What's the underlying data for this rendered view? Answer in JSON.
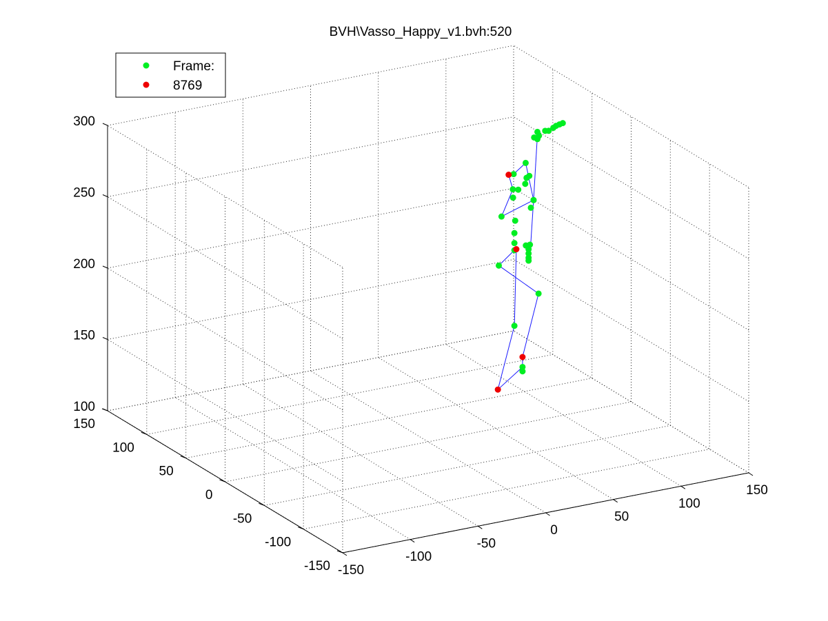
{
  "colors": {
    "background": "#ffffff",
    "joint_normal": "#00ee22",
    "joint_end": "#ee0000",
    "bone": "#1a1aff"
  },
  "chart_data": {
    "type": "scatter",
    "subtype": "3d-skeleton",
    "title": "BVH\\Vasso_Happy_v1.bvh:520",
    "xlabel": "",
    "ylabel": "",
    "zlabel": "",
    "xlim": [
      -150,
      150
    ],
    "ylim": [
      -150,
      150
    ],
    "zlim": [
      100,
      300
    ],
    "x_ticks": [
      "-150",
      "-100",
      "-50",
      "0",
      "50",
      "100",
      "150"
    ],
    "y_ticks": [
      "-150",
      "-100",
      "-50",
      "0",
      "50",
      "100",
      "150"
    ],
    "z_ticks": [
      "100",
      "150",
      "200",
      "250",
      "300"
    ],
    "grid": true,
    "legend_position": "top-left",
    "legend": [
      {
        "label": "Frame:",
        "color": "#00ee22"
      },
      {
        "label": "8769",
        "color": "#ee0000"
      }
    ],
    "series": [
      {
        "color": "#00ee22",
        "points": [
          [
            95,
            35,
            257
          ],
          [
            93,
            35,
            256
          ],
          [
            92,
            35,
            252
          ],
          [
            88,
            37,
            248
          ],
          [
            84,
            37,
            249
          ],
          [
            101,
            50,
            260
          ],
          [
            84,
            36,
            260
          ],
          [
            120,
            72,
            267
          ],
          [
            123,
            71,
            268
          ],
          [
            127,
            70,
            271
          ],
          [
            129,
            69,
            271
          ],
          [
            133,
            70,
            272
          ],
          [
            135,
            70,
            273
          ],
          [
            137,
            69,
            274
          ],
          [
            140,
            70,
            274
          ],
          [
            123,
            73,
            270
          ],
          [
            123,
            73,
            265
          ],
          [
            83,
            35,
            244
          ],
          [
            71,
            29,
            235
          ],
          [
            108,
            52,
            232
          ],
          [
            108,
            52,
            232
          ],
          [
            84,
            34,
            228
          ],
          [
            106,
            52,
            227
          ],
          [
            84,
            35,
            219
          ],
          [
            84,
            35,
            212
          ],
          [
            84,
            35,
            207
          ],
          [
            100,
            48,
            203
          ],
          [
            103,
            48,
            203
          ],
          [
            102,
            48,
            200
          ],
          [
            102,
            48,
            197
          ],
          [
            102,
            48,
            194
          ],
          [
            102,
            48,
            192
          ],
          [
            69,
            29,
            201
          ],
          [
            114,
            56,
            164
          ],
          [
            84,
            35,
            154
          ],
          [
            90,
            35,
            124
          ],
          [
            90,
            35,
            121
          ]
        ]
      },
      {
        "color": "#ee0000",
        "points": [
          [
            78,
            32,
            262
          ],
          [
            86,
            36,
            207
          ],
          [
            90,
            35,
            131
          ],
          [
            66,
            25,
            116
          ]
        ]
      }
    ],
    "bones": [
      [
        [
          84,
          36,
          260
        ],
        [
          101,
          50,
          260
        ]
      ],
      [
        [
          101,
          50,
          260
        ],
        [
          108,
          52,
          232
        ]
      ],
      [
        [
          108,
          52,
          232
        ],
        [
          71,
          29,
          235
        ]
      ],
      [
        [
          71,
          29,
          235
        ],
        [
          84,
          37,
          249
        ]
      ],
      [
        [
          84,
          37,
          249
        ],
        [
          78,
          32,
          262
        ]
      ],
      [
        [
          108,
          52,
          232
        ],
        [
          123,
          73,
          268
        ]
      ],
      [
        [
          108,
          52,
          232
        ],
        [
          106,
          52,
          203
        ]
      ],
      [
        [
          106,
          52,
          203
        ],
        [
          102,
          48,
          195
        ]
      ],
      [
        [
          84,
          35,
          207
        ],
        [
          69,
          29,
          201
        ]
      ],
      [
        [
          69,
          29,
          201
        ],
        [
          114,
          56,
          164
        ]
      ],
      [
        [
          114,
          56,
          164
        ],
        [
          90,
          35,
          131
        ]
      ],
      [
        [
          90,
          35,
          131
        ],
        [
          90,
          35,
          121
        ]
      ],
      [
        [
          86,
          36,
          207
        ],
        [
          84,
          35,
          154
        ]
      ],
      [
        [
          84,
          35,
          154
        ],
        [
          66,
          25,
          116
        ]
      ],
      [
        [
          66,
          25,
          116
        ],
        [
          90,
          35,
          124
        ]
      ]
    ]
  }
}
